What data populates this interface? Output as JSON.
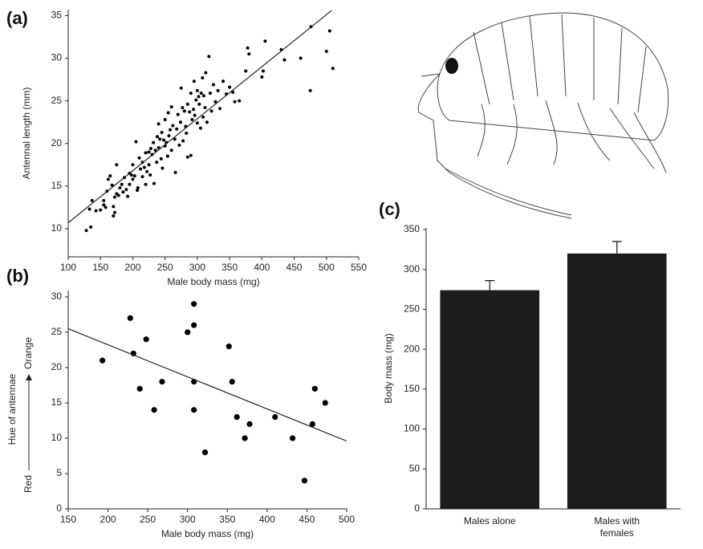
{
  "chart_data": [
    {
      "type": "scatter",
      "panel_label": "(a)",
      "x_label": "Male body mass (mg)",
      "y_label": "Antennal length (mm)",
      "x": [
        128,
        135,
        133,
        137,
        143,
        150,
        155,
        155,
        158,
        160,
        162,
        165,
        168,
        170,
        170,
        172,
        172,
        175,
        175,
        178,
        180,
        183,
        185,
        187,
        190,
        192,
        195,
        195,
        198,
        200,
        200,
        203,
        205,
        207,
        208,
        210,
        212,
        215,
        215,
        218,
        220,
        220,
        222,
        225,
        225,
        227,
        228,
        230,
        232,
        233,
        235,
        237,
        238,
        240,
        240,
        242,
        244,
        245,
        246,
        248,
        250,
        250,
        252,
        254,
        255,
        256,
        258,
        260,
        260,
        262,
        265,
        266,
        268,
        270,
        272,
        274,
        275,
        277,
        278,
        280,
        282,
        283,
        285,
        285,
        288,
        290,
        290,
        292,
        294,
        295,
        296,
        298,
        300,
        300,
        302,
        303,
        305,
        306,
        308,
        309,
        310,
        312,
        313,
        315,
        318,
        320,
        322,
        325,
        328,
        332,
        335,
        340,
        345,
        350,
        355,
        358,
        365,
        375,
        378,
        380,
        400,
        402,
        405,
        430,
        435,
        460,
        475,
        476,
        500,
        505,
        510
      ],
      "y": [
        9.8,
        10.2,
        12.3,
        13.3,
        12.1,
        12.2,
        12.8,
        13.3,
        12.5,
        14.4,
        15.8,
        16.2,
        15.1,
        11.5,
        12.6,
        11.9,
        13.7,
        14.1,
        17.5,
        13.9,
        14.8,
        15.2,
        14.3,
        16.0,
        14.6,
        13.8,
        15.2,
        16.5,
        16.3,
        15.8,
        17.5,
        16.2,
        20.2,
        14.5,
        14.8,
        18.3,
        17.0,
        17.8,
        16.1,
        17.2,
        15.2,
        18.9,
        16.7,
        19.0,
        17.5,
        16.3,
        19.4,
        18.7,
        20.1,
        15.3,
        19.2,
        17.8,
        20.8,
        19.5,
        22.3,
        20.5,
        18.2,
        21.3,
        17.1,
        20.4,
        19.7,
        22.8,
        20.1,
        18.5,
        23.6,
        20.9,
        21.6,
        19.2,
        24.3,
        22.1,
        20.5,
        16.6,
        21.7,
        23.4,
        19.8,
        22.5,
        26.5,
        24.2,
        20.3,
        23.8,
        22.0,
        21.2,
        18.4,
        24.6,
        23.7,
        18.6,
        25.9,
        22.8,
        24.0,
        27.3,
        23.3,
        25.1,
        22.4,
        26.2,
        25.5,
        24.6,
        21.8,
        25.9,
        27.7,
        23.1,
        25.6,
        24.2,
        28.3,
        22.5,
        30.2,
        25.9,
        23.8,
        26.9,
        24.9,
        26.2,
        24.1,
        27.3,
        25.8,
        26.6,
        26.0,
        24.9,
        25.0,
        28.5,
        31.2,
        30.5,
        27.8,
        28.5,
        32.0,
        31.0,
        29.8,
        30.0,
        26.2,
        33.7,
        30.8,
        33.2,
        28.8
      ],
      "trend": {
        "x": [
          100,
          508
        ],
        "y": [
          10.7,
          35.6
        ]
      },
      "xlim": [
        100,
        550
      ],
      "ylim": [
        6.7,
        35.7
      ],
      "xticks": [
        100,
        150,
        200,
        250,
        300,
        350,
        400,
        450,
        500,
        550
      ],
      "yticks": [
        10,
        15,
        20,
        25,
        30,
        35
      ],
      "color": "#000000"
    },
    {
      "type": "scatter",
      "panel_label": "(b)",
      "x_label": "Male body mass (mg)",
      "y_label": "Hue of antennae",
      "y_label_low": "Red",
      "y_label_high": "Orange",
      "x": [
        193,
        228,
        232,
        240,
        248,
        258,
        268,
        300,
        308,
        308,
        308,
        308,
        322,
        352,
        356,
        362,
        372,
        378,
        410,
        432,
        447,
        457,
        460,
        473
      ],
      "y": [
        21,
        27,
        22,
        17,
        24,
        14,
        18,
        25,
        29,
        26,
        18,
        14,
        8,
        23,
        18,
        13,
        10,
        12,
        13,
        10,
        4,
        12,
        17,
        15
      ],
      "trend": {
        "x": [
          150,
          500
        ],
        "y": [
          25.5,
          9.6
        ]
      },
      "xlim": [
        150,
        500
      ],
      "ylim": [
        0,
        30.9
      ],
      "xticks": [
        150,
        200,
        250,
        300,
        350,
        400,
        450,
        500
      ],
      "yticks": [
        0,
        5,
        10,
        15,
        20,
        25,
        30
      ],
      "color": "#000000"
    },
    {
      "type": "bar",
      "panel_label": "(c)",
      "y_label": "Body mass (mg)",
      "categories": [
        "Males alone",
        "Males with females"
      ],
      "values": [
        274,
        320
      ],
      "errors": [
        12,
        15
      ],
      "ylim": [
        0,
        352
      ],
      "yticks": [
        0,
        50,
        100,
        150,
        200,
        250,
        300,
        350
      ],
      "color": "#1c1c1c"
    }
  ]
}
